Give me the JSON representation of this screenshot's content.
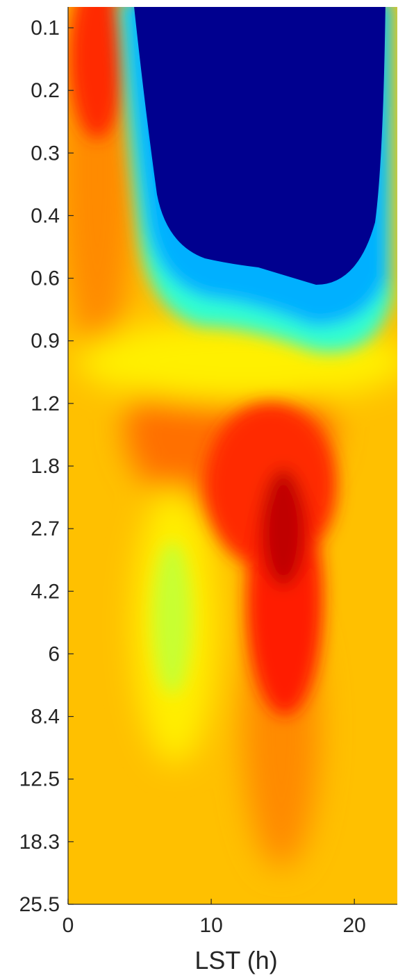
{
  "chart_data": {
    "type": "heatmap",
    "title": "",
    "xlabel": "LST (h)",
    "ylabel": "",
    "xlim": [
      0,
      23
    ],
    "ylim": [
      0.1,
      25.5
    ],
    "yscale": "log",
    "yreversed": true,
    "colormap": "jet",
    "x_ticks": [
      {
        "value": 0,
        "label": "0"
      },
      {
        "value": 10,
        "label": "10"
      },
      {
        "value": 20,
        "label": "20"
      }
    ],
    "y_ticks": [
      {
        "value": 0.1,
        "label": "0.1"
      },
      {
        "value": 0.2,
        "label": "0.2"
      },
      {
        "value": 0.3,
        "label": "0.3"
      },
      {
        "value": 0.4,
        "label": "0.4"
      },
      {
        "value": 0.6,
        "label": "0.6"
      },
      {
        "value": 0.9,
        "label": "0.9"
      },
      {
        "value": 1.2,
        "label": "1.2"
      },
      {
        "value": 1.8,
        "label": "1.8"
      },
      {
        "value": 2.7,
        "label": "2.7"
      },
      {
        "value": 4.2,
        "label": "4.2"
      },
      {
        "value": 6,
        "label": "6"
      },
      {
        "value": 8.4,
        "label": "8.4"
      },
      {
        "value": 12.5,
        "label": "12.5"
      },
      {
        "value": 18.3,
        "label": "18.3"
      },
      {
        "value": 25.5,
        "label": "25.5"
      }
    ]
  }
}
